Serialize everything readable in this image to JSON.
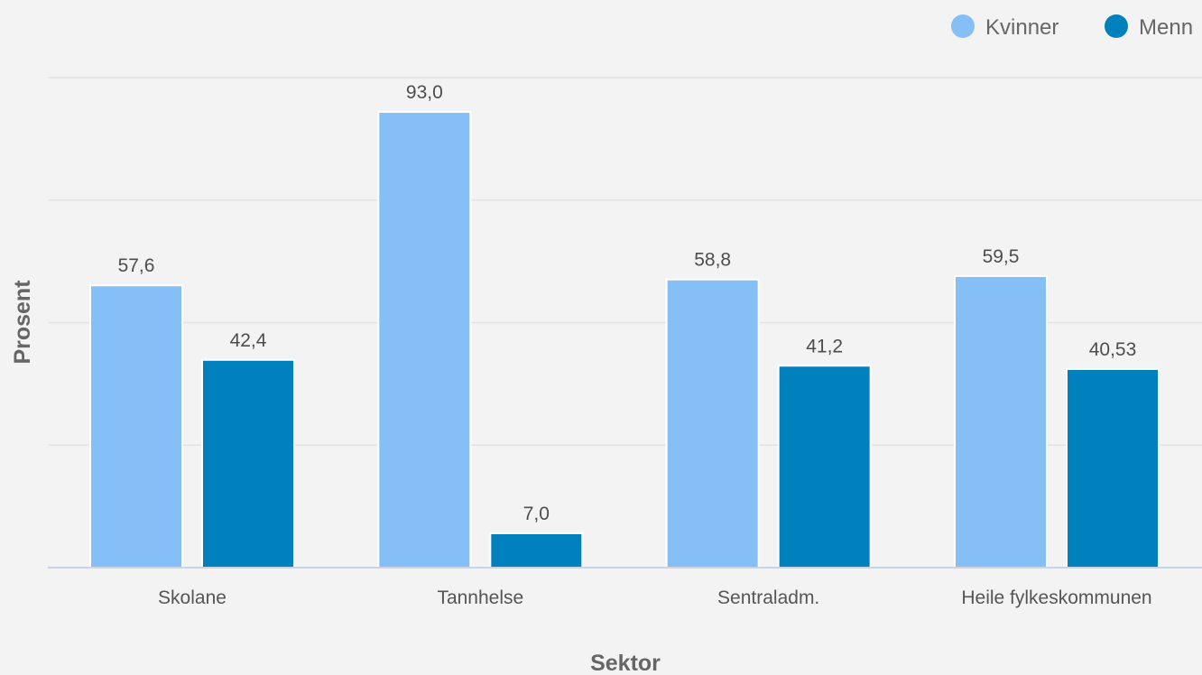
{
  "chart_data": {
    "type": "bar",
    "categories": [
      "Skolane",
      "Tannhelse",
      "Sentraladm.",
      "Heile fylkeskommunen"
    ],
    "series": [
      {
        "name": "Kvinner",
        "values": [
          57.6,
          93.0,
          58.8,
          59.5
        ],
        "labels": [
          "57,6",
          "93,0",
          "58,8",
          "59,5"
        ],
        "color": "#85bff5"
      },
      {
        "name": "Menn",
        "values": [
          42.4,
          7.0,
          41.2,
          40.53
        ],
        "labels": [
          "42,4",
          "7,0",
          "41,2",
          "40,53"
        ],
        "color": "#0080bd"
      }
    ],
    "xlabel": "Sektor",
    "ylabel": "Prosent",
    "ylim": [
      0,
      100
    ],
    "grid": true,
    "legend": "top-right"
  }
}
